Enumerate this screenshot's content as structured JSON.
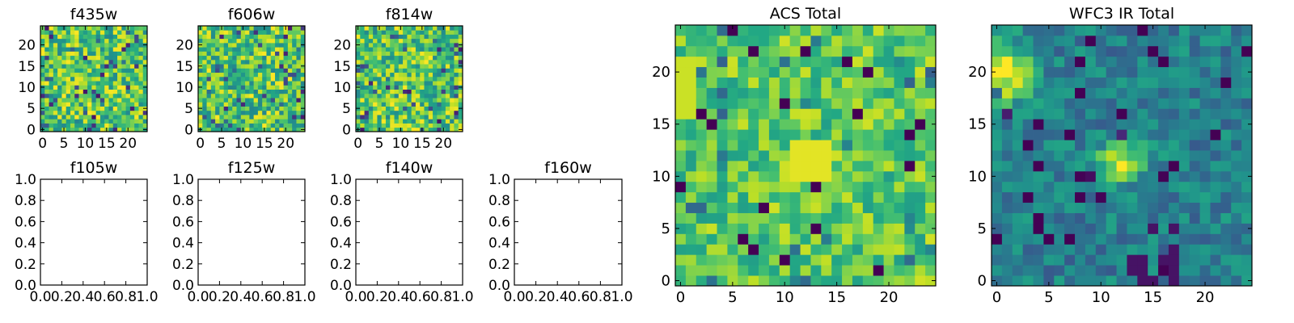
{
  "chart_data": [
    {
      "id": "f435w",
      "type": "heatmap",
      "title": "f435w",
      "size": 25,
      "xticks": [
        "0",
        "5",
        "10",
        "15",
        "20"
      ],
      "yticks": [
        "0",
        "5",
        "10",
        "15",
        "20"
      ],
      "seed": 11,
      "style": "noisy"
    },
    {
      "id": "f606w",
      "type": "heatmap",
      "title": "f606w",
      "size": 25,
      "xticks": [
        "0",
        "5",
        "10",
        "15",
        "20"
      ],
      "yticks": [
        "0",
        "5",
        "10",
        "15",
        "20"
      ],
      "seed": 23,
      "style": "noisy"
    },
    {
      "id": "f814w",
      "type": "heatmap",
      "title": "f814w",
      "size": 25,
      "xticks": [
        "0",
        "5",
        "10",
        "15",
        "20"
      ],
      "yticks": [
        "0",
        "5",
        "10",
        "15",
        "20"
      ],
      "seed": 37,
      "style": "noisy"
    },
    {
      "id": "f105w",
      "type": "empty",
      "title": "f105w",
      "xticks": [
        "0.0",
        "0.2",
        "0.4",
        "0.6",
        "0.8",
        "1.0"
      ],
      "yticks": [
        "0.0",
        "0.2",
        "0.4",
        "0.6",
        "0.8",
        "1.0"
      ],
      "xlim": [
        0,
        1
      ],
      "ylim": [
        0,
        1
      ]
    },
    {
      "id": "f125w",
      "type": "empty",
      "title": "f125w",
      "xticks": [
        "0.0",
        "0.2",
        "0.4",
        "0.6",
        "0.8",
        "1.0"
      ],
      "yticks": [
        "0.0",
        "0.2",
        "0.4",
        "0.6",
        "0.8",
        "1.0"
      ],
      "xlim": [
        0,
        1
      ],
      "ylim": [
        0,
        1
      ]
    },
    {
      "id": "f140w",
      "type": "empty",
      "title": "f140w",
      "xticks": [
        "0.0",
        "0.2",
        "0.4",
        "0.6",
        "0.8",
        "1.0"
      ],
      "yticks": [
        "0.0",
        "0.2",
        "0.4",
        "0.6",
        "0.8",
        "1.0"
      ],
      "xlim": [
        0,
        1
      ],
      "ylim": [
        0,
        1
      ]
    },
    {
      "id": "f160w",
      "type": "empty",
      "title": "f160w",
      "xticks": [
        "0.0",
        "0.2",
        "0.4",
        "0.6",
        "0.8",
        "1.0"
      ],
      "yticks": [
        "0.0",
        "0.2",
        "0.4",
        "0.6",
        "0.8",
        "1.0"
      ],
      "xlim": [
        0,
        1
      ],
      "ylim": [
        0,
        1
      ]
    },
    {
      "id": "acs-total",
      "type": "heatmap",
      "title": "ACS Total",
      "size": 25,
      "xticks": [
        "0",
        "5",
        "10",
        "15",
        "20"
      ],
      "yticks": [
        "0",
        "5",
        "10",
        "15",
        "20"
      ],
      "seed": 53,
      "style": "acs"
    },
    {
      "id": "wfc3-ir-total",
      "type": "heatmap",
      "title": "WFC3 IR Total",
      "size": 25,
      "xticks": [
        "0",
        "5",
        "10",
        "15",
        "20"
      ],
      "yticks": [
        "0",
        "5",
        "10",
        "15",
        "20"
      ],
      "seed": 71,
      "style": "ir"
    }
  ],
  "colors": {
    "colormap": "viridis",
    "colormap_stops": [
      "#440154",
      "#3b528b",
      "#21918c",
      "#5ec962",
      "#fde725"
    ]
  }
}
